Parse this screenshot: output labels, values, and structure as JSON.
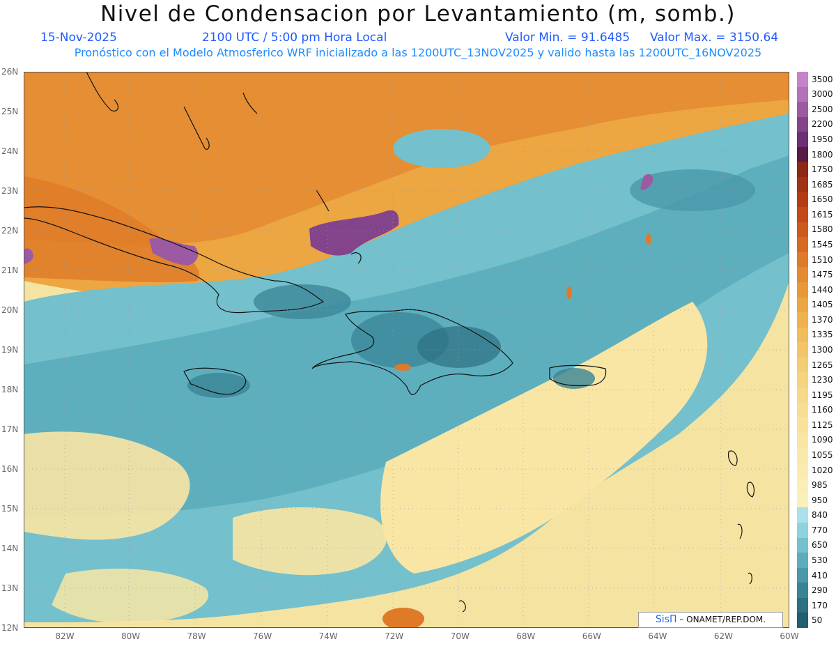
{
  "header": {
    "title": "Nivel de Condensacion por Levantamiento (m, somb.)",
    "date": "15-Nov-2025",
    "time": "2100 UTC / 5:00 pm Hora Local",
    "min_label": "Valor Min. = 91.6485",
    "max_label": "Valor Max. = 3150.64",
    "model_line": "Pronóstico con el Modelo Atmosferico WRF inicializado a las 1200UTC_13NOV2025 y valido hasta las  1200UTC_16NOV2025"
  },
  "map": {
    "lat_labels": [
      "26N",
      "25N",
      "24N",
      "23N",
      "22N",
      "21N",
      "20N",
      "19N",
      "18N",
      "17N",
      "16N",
      "15N",
      "14N",
      "13N",
      "12N"
    ],
    "lon_labels": [
      "82W",
      "80W",
      "78W",
      "76W",
      "74W",
      "72W",
      "70W",
      "68W",
      "66W",
      "64W",
      "62W",
      "60W"
    ]
  },
  "colorbar": {
    "levels": [
      "3500",
      "3000",
      "2500",
      "2200",
      "1950",
      "1800",
      "1750",
      "1685",
      "1650",
      "1615",
      "1580",
      "1545",
      "1510",
      "1475",
      "1440",
      "1405",
      "1370",
      "1335",
      "1300",
      "1265",
      "1230",
      "1195",
      "1160",
      "1125",
      "1090",
      "1055",
      "1020",
      "985",
      "950",
      "840",
      "770",
      "650",
      "530",
      "410",
      "290",
      "170",
      "50"
    ],
    "colors": [
      "#c584c8",
      "#b470b8",
      "#9c5aa2",
      "#84448c",
      "#6c2e74",
      "#581c44",
      "#8c2814",
      "#a23214",
      "#b43c14",
      "#c24a18",
      "#cc5a1c",
      "#d66a22",
      "#de7a28",
      "#e48a30",
      "#e89838",
      "#eca642",
      "#efb24e",
      "#f1bc5a",
      "#f3c566",
      "#f4cd72",
      "#f5d47e",
      "#f6da8a",
      "#f7de94",
      "#f8e29c",
      "#f9e6a4",
      "#f9e9aa",
      "#faecb0",
      "#faeeb4",
      "#fbf0b8",
      "#a8e2e8",
      "#8ed2dc",
      "#74c0cc",
      "#5cadbc",
      "#4898aa",
      "#388496",
      "#2c7082",
      "#205e70"
    ]
  },
  "credit": {
    "brand": "SisΠ",
    "text": " –  ONAMET/REP.DOM."
  }
}
